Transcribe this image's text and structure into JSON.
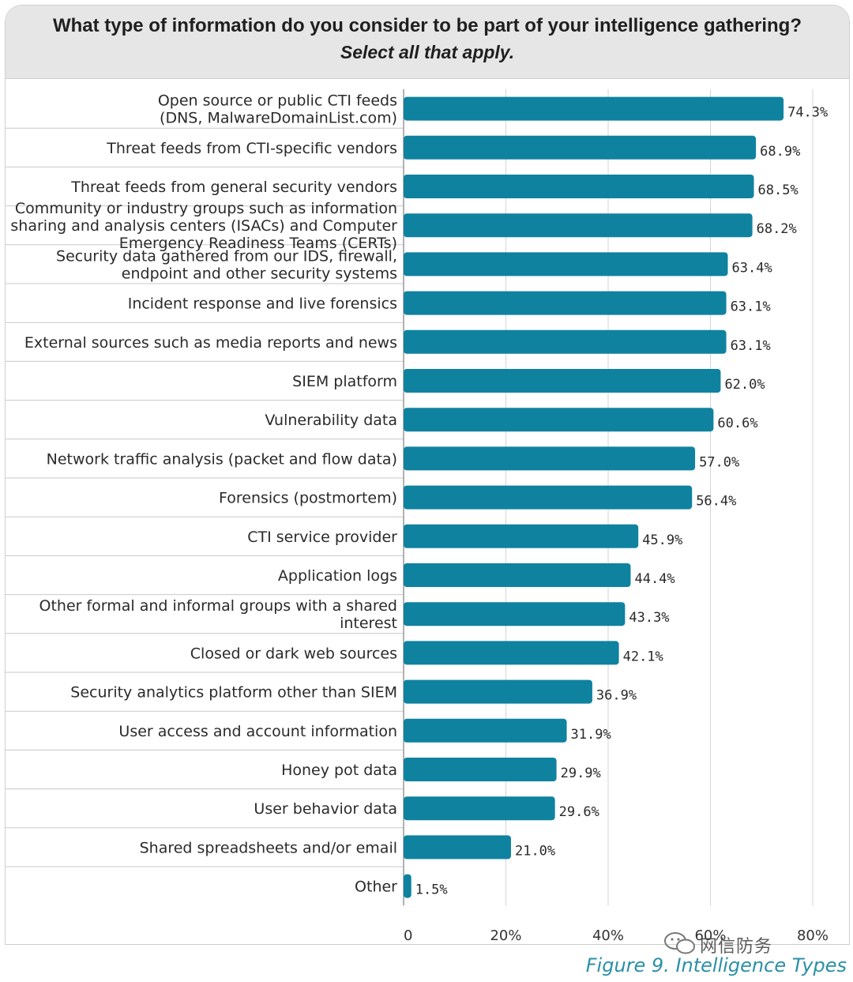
{
  "chart_data": {
    "type": "bar",
    "orientation": "horizontal",
    "title": "What type of information do you consider to be part of your intelligence gathering?",
    "subtitle": "Select all that apply.",
    "categories": [
      [
        "Open source or public CTI feeds",
        "(DNS, MalwareDomainList.com)"
      ],
      [
        "Threat feeds from CTI-specific vendors"
      ],
      [
        "Threat feeds from general security vendors"
      ],
      [
        "Community or industry groups such as information",
        "sharing and analysis centers (ISACs) and Computer",
        "Emergency Readiness Teams (CERTs)"
      ],
      [
        "Security data gathered from our IDS, firewall,",
        "endpoint and other security systems"
      ],
      [
        "Incident response and live forensics"
      ],
      [
        "External sources such as media reports and news"
      ],
      [
        "SIEM platform"
      ],
      [
        "Vulnerability data"
      ],
      [
        "Network traffic analysis (packet and flow data)"
      ],
      [
        "Forensics (postmortem)"
      ],
      [
        "CTI service provider"
      ],
      [
        "Application logs"
      ],
      [
        "Other formal and informal groups with a shared",
        "interest"
      ],
      [
        "Closed or dark web sources"
      ],
      [
        "Security analytics platform other than SIEM"
      ],
      [
        "User access and account information"
      ],
      [
        "Honey pot data"
      ],
      [
        "User behavior data"
      ],
      [
        "Shared spreadsheets and/or email"
      ],
      [
        "Other"
      ]
    ],
    "values": [
      74.3,
      68.9,
      68.5,
      68.2,
      63.4,
      63.1,
      63.1,
      62.0,
      60.6,
      57.0,
      56.4,
      45.9,
      44.4,
      43.3,
      42.1,
      36.9,
      31.9,
      29.9,
      29.6,
      21.0,
      1.5
    ],
    "value_labels": [
      "74.3%",
      "68.9%",
      "68.5%",
      "68.2%",
      "63.4%",
      "63.1%",
      "63.1%",
      "62.0%",
      "60.6%",
      "57.0%",
      "56.4%",
      "45.9%",
      "44.4%",
      "43.3%",
      "42.1%",
      "36.9%",
      "31.9%",
      "29.9%",
      "29.6%",
      "21.0%",
      "1.5%"
    ],
    "xlim": [
      0,
      80
    ],
    "xticks": [
      0,
      20,
      40,
      60,
      80
    ],
    "xtick_labels": [
      "0",
      "20%",
      "40%",
      "60%",
      "80%"
    ],
    "bar_color": "#0f829f",
    "grid": true
  },
  "caption": "Figure 9. Intelligence Types",
  "watermark": "网信防务"
}
